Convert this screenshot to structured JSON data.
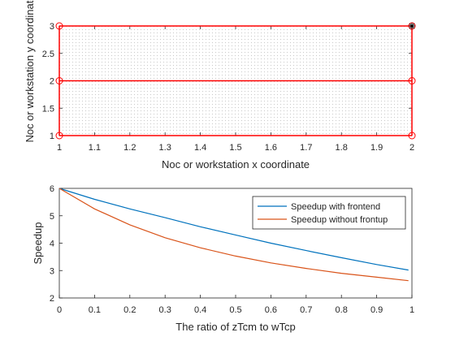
{
  "colors": {
    "axis": "#262626",
    "grid_dots": "#c8c8c8",
    "network_red": "#ff0000",
    "series_blue": "#0072bd",
    "series_orange": "#d95319",
    "legend_border": "#262626"
  },
  "chart_data": [
    {
      "type": "scatter",
      "xlabel": "Noc or workstation x coordinate",
      "ylabel": "Noc or workstation y coordinate",
      "xlim": [
        1,
        2
      ],
      "ylim": [
        1,
        3
      ],
      "x_ticks": [
        "1",
        "1.1",
        "1.2",
        "1.3",
        "1.4",
        "1.5",
        "1.6",
        "1.7",
        "1.8",
        "1.9",
        "2"
      ],
      "y_ticks": [
        "1",
        "1.5",
        "2",
        "2.5",
        "3"
      ],
      "grid": false,
      "background_points": "dense dotted grid covering the full area",
      "nodes": [
        {
          "x": 1,
          "y": 1
        },
        {
          "x": 2,
          "y": 1
        },
        {
          "x": 1,
          "y": 2
        },
        {
          "x": 2,
          "y": 2
        },
        {
          "x": 1,
          "y": 3
        },
        {
          "x": 2,
          "y": 3
        }
      ],
      "links": [
        [
          {
            "x": 1,
            "y": 1
          },
          {
            "x": 2,
            "y": 1
          }
        ],
        [
          {
            "x": 1,
            "y": 2
          },
          {
            "x": 2,
            "y": 2
          }
        ],
        [
          {
            "x": 1,
            "y": 3
          },
          {
            "x": 2,
            "y": 3
          }
        ],
        [
          {
            "x": 1,
            "y": 1
          },
          {
            "x": 1,
            "y": 3
          }
        ],
        [
          {
            "x": 2,
            "y": 1
          },
          {
            "x": 2,
            "y": 3
          }
        ]
      ],
      "highlight_marker": {
        "x": 2,
        "y": 3,
        "symbol": "*"
      }
    },
    {
      "type": "line",
      "xlabel": "The ratio of zTcm to wTcp",
      "ylabel": "Speedup",
      "xlim": [
        0,
        1
      ],
      "ylim": [
        2,
        6
      ],
      "x_ticks": [
        "0",
        "0.1",
        "0.2",
        "0.3",
        "0.4",
        "0.5",
        "0.6",
        "0.7",
        "0.8",
        "0.9",
        "1"
      ],
      "y_ticks": [
        "2",
        "3",
        "4",
        "5",
        "6"
      ],
      "grid": false,
      "legend_position": "top-right",
      "x": [
        0,
        0.1,
        0.2,
        0.3,
        0.4,
        0.5,
        0.6,
        0.7,
        0.8,
        0.9,
        0.99
      ],
      "series": [
        {
          "name": "Speedup with frontend",
          "color": "#0072bd",
          "values": [
            6.0,
            5.6,
            5.25,
            4.93,
            4.6,
            4.3,
            4.0,
            3.73,
            3.47,
            3.22,
            3.02
          ]
        },
        {
          "name": "Speedup without frontup",
          "color": "#d95319",
          "values": [
            6.0,
            5.25,
            4.67,
            4.2,
            3.83,
            3.53,
            3.28,
            3.08,
            2.9,
            2.76,
            2.63
          ]
        }
      ]
    }
  ]
}
